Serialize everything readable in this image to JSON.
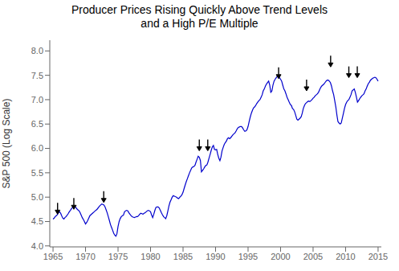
{
  "chart_data": {
    "type": "line",
    "title": "Producer Prices Rising Quickly Above Trend Levels\nand a High P/E Multiple",
    "ylabel": "S&P 500 (Log Scale)",
    "xlim": [
      1964.5,
      2015.5
    ],
    "ylim": [
      3.98,
      8.22
    ],
    "xticks": [
      1965,
      1970,
      1975,
      1980,
      1985,
      1990,
      1995,
      2000,
      2005,
      2010,
      2015
    ],
    "yticks": [
      {
        "value": 4.0,
        "label": "4.0"
      },
      4.5,
      {
        "value": 5.0,
        "label": "5.0"
      },
      5.5,
      {
        "value": 6.0,
        "label": "6.0"
      },
      6.5,
      {
        "value": 7.0,
        "label": "7.0"
      },
      7.5,
      {
        "value": 8.0,
        "label": "8.0"
      }
    ],
    "color": "#0000cc",
    "annotations": [
      {
        "x": 1965.7,
        "y": 4.75,
        "color": "#000000"
      },
      {
        "x": 1968.2,
        "y": 4.85,
        "color": "#000000"
      },
      {
        "x": 1972.8,
        "y": 4.99,
        "color": "#000000"
      },
      {
        "x": 1987.5,
        "y": 6.05,
        "color": "#000000"
      },
      {
        "x": 1988.8,
        "y": 6.05,
        "color": "#000000"
      },
      {
        "x": 1999.7,
        "y": 7.53,
        "color": "#000000"
      },
      {
        "x": 2004.0,
        "y": 7.28,
        "color": "#000000"
      },
      {
        "x": 2007.7,
        "y": 7.77,
        "color": "#000000"
      },
      {
        "x": 2010.5,
        "y": 7.55,
        "color": "#000000"
      },
      {
        "x": 2011.8,
        "y": 7.55,
        "color": "#000000"
      }
    ],
    "x": [
      1965,
      1965.17,
      1965.33,
      1965.5,
      1965.67,
      1965.83,
      1966,
      1966.17,
      1966.33,
      1966.5,
      1966.67,
      1966.83,
      1967,
      1967.17,
      1967.33,
      1967.5,
      1967.67,
      1967.83,
      1968,
      1968.17,
      1968.33,
      1968.5,
      1968.67,
      1968.83,
      1969,
      1969.17,
      1969.33,
      1969.5,
      1969.67,
      1969.83,
      1970,
      1970.17,
      1970.33,
      1970.5,
      1970.67,
      1970.83,
      1971,
      1971.17,
      1971.33,
      1971.5,
      1971.67,
      1971.83,
      1972,
      1972.17,
      1972.33,
      1972.5,
      1972.67,
      1972.83,
      1973,
      1973.17,
      1973.33,
      1973.5,
      1973.67,
      1973.83,
      1974,
      1974.17,
      1974.33,
      1974.5,
      1974.67,
      1974.83,
      1975,
      1975.17,
      1975.33,
      1975.5,
      1975.67,
      1975.83,
      1976,
      1976.17,
      1976.33,
      1976.5,
      1976.67,
      1976.83,
      1977,
      1977.17,
      1977.33,
      1977.5,
      1977.67,
      1977.83,
      1978,
      1978.17,
      1978.33,
      1978.5,
      1978.67,
      1978.83,
      1979,
      1979.17,
      1979.33,
      1979.5,
      1979.67,
      1979.83,
      1980,
      1980.17,
      1980.33,
      1980.5,
      1980.67,
      1980.83,
      1981,
      1981.17,
      1981.33,
      1981.5,
      1981.67,
      1981.83,
      1982,
      1982.17,
      1982.33,
      1982.5,
      1982.67,
      1982.83,
      1983,
      1983.17,
      1983.33,
      1983.5,
      1983.67,
      1983.83,
      1984,
      1984.17,
      1984.33,
      1984.5,
      1984.67,
      1984.83,
      1985,
      1985.17,
      1985.33,
      1985.5,
      1985.67,
      1985.83,
      1986,
      1986.17,
      1986.33,
      1986.5,
      1986.67,
      1986.83,
      1987,
      1987.17,
      1987.33,
      1987.5,
      1987.67,
      1987.83,
      1988,
      1988.17,
      1988.33,
      1988.5,
      1988.67,
      1988.83,
      1989,
      1989.17,
      1989.33,
      1989.5,
      1989.67,
      1989.83,
      1990,
      1990.17,
      1990.33,
      1990.5,
      1990.67,
      1990.83,
      1991,
      1991.17,
      1991.33,
      1991.5,
      1991.67,
      1991.83,
      1992,
      1992.17,
      1992.33,
      1992.5,
      1992.67,
      1992.83,
      1993,
      1993.17,
      1993.33,
      1993.5,
      1993.67,
      1993.83,
      1994,
      1994.17,
      1994.33,
      1994.5,
      1994.67,
      1994.83,
      1995,
      1995.17,
      1995.33,
      1995.5,
      1995.67,
      1995.83,
      1996,
      1996.17,
      1996.33,
      1996.5,
      1996.67,
      1996.83,
      1997,
      1997.17,
      1997.33,
      1997.5,
      1997.67,
      1997.83,
      1998,
      1998.17,
      1998.33,
      1998.5,
      1998.67,
      1998.83,
      1999,
      1999.17,
      1999.33,
      1999.5,
      1999.67,
      1999.83,
      2000,
      2000.17,
      2000.33,
      2000.5,
      2000.67,
      2000.83,
      2001,
      2001.17,
      2001.33,
      2001.5,
      2001.67,
      2001.83,
      2002,
      2002.17,
      2002.33,
      2002.5,
      2002.67,
      2002.83,
      2003,
      2003.17,
      2003.33,
      2003.5,
      2003.67,
      2003.83,
      2004,
      2004.17,
      2004.33,
      2004.5,
      2004.67,
      2004.83,
      2005,
      2005.17,
      2005.33,
      2005.5,
      2005.67,
      2005.83,
      2006,
      2006.17,
      2006.33,
      2006.5,
      2006.67,
      2006.83,
      2007,
      2007.17,
      2007.33,
      2007.5,
      2007.67,
      2007.83,
      2008,
      2008.17,
      2008.33,
      2008.5,
      2008.67,
      2008.83,
      2009,
      2009.17,
      2009.33,
      2009.5,
      2009.67,
      2009.83,
      2010,
      2010.17,
      2010.33,
      2010.5,
      2010.67,
      2010.83,
      2011,
      2011.17,
      2011.33,
      2011.5,
      2011.67,
      2011.83,
      2012,
      2012.17,
      2012.33,
      2012.5,
      2012.67,
      2012.83,
      2013,
      2013.17,
      2013.33,
      2013.5,
      2013.67,
      2013.83,
      2014,
      2014.17,
      2014.33,
      2014.5,
      2014.67,
      2014.83,
      2015
    ],
    "values": [
      4.55,
      4.57,
      4.6,
      4.62,
      4.64,
      4.68,
      4.7,
      4.67,
      4.62,
      4.57,
      4.55,
      4.58,
      4.6,
      4.63,
      4.66,
      4.7,
      4.73,
      4.76,
      4.79,
      4.8,
      4.81,
      4.79,
      4.76,
      4.74,
      4.72,
      4.68,
      4.63,
      4.58,
      4.54,
      4.5,
      4.45,
      4.48,
      4.52,
      4.57,
      4.62,
      4.64,
      4.66,
      4.68,
      4.7,
      4.72,
      4.74,
      4.76,
      4.79,
      4.82,
      4.84,
      4.86,
      4.85,
      4.84,
      4.8,
      4.74,
      4.68,
      4.6,
      4.52,
      4.44,
      4.38,
      4.32,
      4.26,
      4.22,
      4.2,
      4.25,
      4.4,
      4.5,
      4.56,
      4.6,
      4.62,
      4.63,
      4.7,
      4.72,
      4.73,
      4.72,
      4.68,
      4.65,
      4.62,
      4.6,
      4.59,
      4.58,
      4.59,
      4.6,
      4.6,
      4.62,
      4.65,
      4.67,
      4.66,
      4.65,
      4.67,
      4.68,
      4.7,
      4.72,
      4.73,
      4.72,
      4.7,
      4.63,
      4.58,
      4.65,
      4.73,
      4.79,
      4.8,
      4.8,
      4.78,
      4.73,
      4.68,
      4.64,
      4.6,
      4.58,
      4.56,
      4.62,
      4.72,
      4.82,
      4.9,
      4.95,
      5.0,
      5.03,
      5.02,
      5.01,
      5.0,
      4.98,
      4.97,
      5.0,
      5.02,
      5.05,
      5.1,
      5.18,
      5.25,
      5.32,
      5.38,
      5.44,
      5.5,
      5.55,
      5.6,
      5.62,
      5.63,
      5.65,
      5.72,
      5.78,
      5.84,
      5.82,
      5.75,
      5.52,
      5.55,
      5.58,
      5.62,
      5.65,
      5.66,
      5.72,
      5.8,
      5.88,
      5.96,
      6.03,
      6.06,
      5.98,
      5.97,
      5.98,
      5.88,
      5.8,
      5.75,
      5.82,
      5.95,
      6.02,
      6.08,
      6.12,
      6.15,
      6.2,
      6.22,
      6.2,
      6.22,
      6.25,
      6.28,
      6.3,
      6.32,
      6.36,
      6.4,
      6.43,
      6.44,
      6.45,
      6.45,
      6.42,
      6.38,
      6.35,
      6.36,
      6.38,
      6.45,
      6.55,
      6.64,
      6.72,
      6.78,
      6.83,
      6.85,
      6.88,
      6.92,
      6.95,
      6.98,
      7.0,
      7.05,
      7.1,
      7.18,
      7.22,
      7.28,
      7.32,
      7.35,
      7.38,
      7.3,
      7.15,
      7.18,
      7.3,
      7.38,
      7.42,
      7.45,
      7.48,
      7.5,
      7.45,
      7.42,
      7.38,
      7.3,
      7.22,
      7.18,
      7.12,
      7.05,
      7.0,
      6.95,
      6.9,
      6.88,
      6.82,
      6.8,
      6.75,
      6.68,
      6.6,
      6.58,
      6.6,
      6.62,
      6.65,
      6.72,
      6.82,
      6.88,
      6.92,
      6.94,
      6.96,
      6.97,
      6.96,
      6.98,
      7.0,
      7.03,
      7.05,
      7.08,
      7.1,
      7.12,
      7.15,
      7.2,
      7.25,
      7.28,
      7.3,
      7.32,
      7.35,
      7.38,
      7.4,
      7.4,
      7.38,
      7.35,
      7.28,
      7.18,
      7.1,
      6.98,
      6.85,
      6.68,
      6.55,
      6.52,
      6.5,
      6.52,
      6.62,
      6.72,
      6.82,
      6.9,
      6.95,
      6.98,
      7.0,
      7.05,
      7.1,
      7.18,
      7.2,
      7.22,
      7.15,
      7.05,
      6.95,
      6.98,
      7.02,
      7.05,
      7.08,
      7.1,
      7.12,
      7.18,
      7.22,
      7.28,
      7.33,
      7.36,
      7.4,
      7.42,
      7.44,
      7.45,
      7.46,
      7.45,
      7.42,
      7.38
    ]
  }
}
